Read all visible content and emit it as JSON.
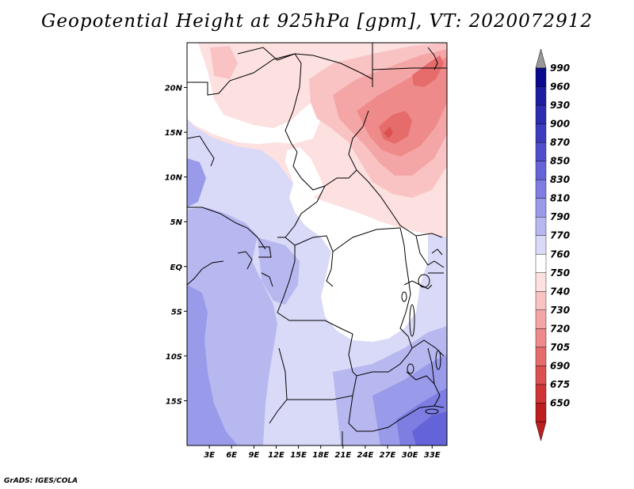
{
  "title": "Geopotential Height at 925hPa [gpm], VT: 2020072912",
  "footer": "GrADS: IGES/COLA",
  "map": {
    "lon_range": [
      0,
      35
    ],
    "lat_range": [
      -20,
      25
    ],
    "lat_ticks": [
      {
        "value": 20,
        "label": "20N"
      },
      {
        "value": 15,
        "label": "15N"
      },
      {
        "value": 10,
        "label": "10N"
      },
      {
        "value": 5,
        "label": "5N"
      },
      {
        "value": 0,
        "label": "EQ"
      },
      {
        "value": -5,
        "label": "5S"
      },
      {
        "value": -10,
        "label": "10S"
      },
      {
        "value": -15,
        "label": "15S"
      }
    ],
    "lon_ticks": [
      {
        "value": 3,
        "label": "3E"
      },
      {
        "value": 6,
        "label": "6E"
      },
      {
        "value": 9,
        "label": "9E"
      },
      {
        "value": 12,
        "label": "12E"
      },
      {
        "value": 15,
        "label": "15E"
      },
      {
        "value": 18,
        "label": "18E"
      },
      {
        "value": 21,
        "label": "21E"
      },
      {
        "value": 24,
        "label": "24E"
      },
      {
        "value": 27,
        "label": "27E"
      },
      {
        "value": 30,
        "label": "30E"
      },
      {
        "value": 33,
        "label": "33E"
      }
    ]
  },
  "colorbar": {
    "levels": [
      {
        "label": "990",
        "color": "#0a0a8c"
      },
      {
        "label": "960",
        "color": "#1e1ea0"
      },
      {
        "label": "930",
        "color": "#2d2db0"
      },
      {
        "label": "900",
        "color": "#3c3cbe"
      },
      {
        "label": "870",
        "color": "#4f4fcc"
      },
      {
        "label": "850",
        "color": "#6464d8"
      },
      {
        "label": "830",
        "color": "#7d7de2"
      },
      {
        "label": "810",
        "color": "#9a9aea"
      },
      {
        "label": "790",
        "color": "#b8b8f0"
      },
      {
        "label": "770",
        "color": "#d9d9f8"
      },
      {
        "label": "760",
        "color": "#ffffff"
      },
      {
        "label": "750",
        "color": "#fde0e0"
      },
      {
        "label": "740",
        "color": "#f9c3c3"
      },
      {
        "label": "730",
        "color": "#f4a6a6"
      },
      {
        "label": "720",
        "color": "#ee8a8a"
      },
      {
        "label": "705",
        "color": "#e66c6c"
      },
      {
        "label": "690",
        "color": "#dc5050"
      },
      {
        "label": "675",
        "color": "#cf3535"
      },
      {
        "label": "650",
        "color": "#bd1f1f"
      }
    ]
  }
}
